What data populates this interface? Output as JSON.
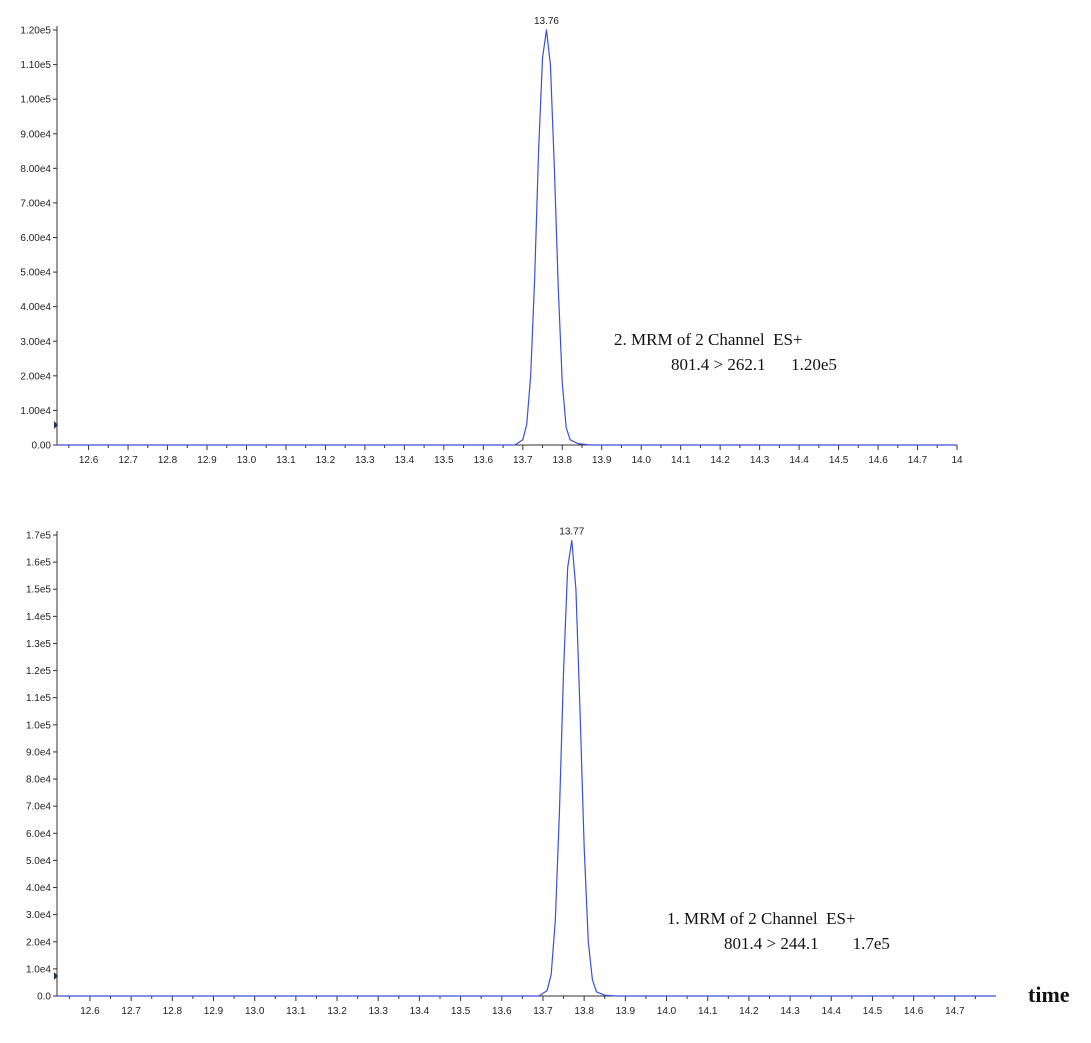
{
  "colors": {
    "trace": "#3b4fd8",
    "axis": "#333333"
  },
  "axis_word": "time",
  "chart_data": [
    {
      "type": "line",
      "title": "",
      "xlabel": "",
      "ylabel": "",
      "xlim": [
        12.52,
        14.8
      ],
      "ylim": [
        0,
        120000
      ],
      "x_ticks": [
        "12.6",
        "12.7",
        "12.8",
        "12.9",
        "13.0",
        "13.1",
        "13.2",
        "13.3",
        "13.4",
        "13.5",
        "13.6",
        "13.7",
        "13.8",
        "13.9",
        "14.0",
        "14.1",
        "14.2",
        "14.3",
        "14.4",
        "14.5",
        "14.6",
        "14.7",
        "14"
      ],
      "y_ticks": [
        "0.00",
        "1.00e4",
        "2.00e4",
        "3.00e4",
        "4.00e4",
        "5.00e4",
        "6.00e4",
        "7.00e4",
        "8.00e4",
        "9.00e4",
        "1.00e5",
        "1.10e5",
        "1.20e5"
      ],
      "peak_label": "13.76",
      "annotation_lines": [
        "2. MRM of 2 Channel  ES+",
        "801.4 > 262.1      1.20e5"
      ],
      "series": [
        {
          "x": [
            12.52,
            13.68,
            13.7,
            13.71,
            13.72,
            13.73,
            13.74,
            13.75,
            13.76,
            13.77,
            13.78,
            13.79,
            13.8,
            13.81,
            13.82,
            13.84,
            13.87,
            14.8
          ],
          "y": [
            0,
            0,
            1500,
            6000,
            20000,
            48000,
            85000,
            112000,
            120000,
            110000,
            80000,
            45000,
            18000,
            5000,
            1500,
            400,
            0,
            0
          ]
        }
      ]
    },
    {
      "type": "line",
      "title": "",
      "xlabel": "",
      "ylabel": "",
      "xlim": [
        12.52,
        14.8
      ],
      "ylim": [
        0,
        170000
      ],
      "x_ticks": [
        "12.6",
        "12.7",
        "12.8",
        "12.9",
        "13.0",
        "13.1",
        "13.2",
        "13.3",
        "13.4",
        "13.5",
        "13.6",
        "13.7",
        "13.8",
        "13.9",
        "14.0",
        "14.1",
        "14.2",
        "14.3",
        "14.4",
        "14.5",
        "14.6",
        "14.7"
      ],
      "y_ticks": [
        "0.0",
        "1.0e4",
        "2.0e4",
        "3.0e4",
        "4.0e4",
        "5.0e4",
        "6.0e4",
        "7.0e4",
        "8.0e4",
        "9.0e4",
        "1.0e5",
        "1.1e5",
        "1.2e5",
        "1.3e5",
        "1.4e5",
        "1.5e5",
        "1.6e5",
        "1.7e5"
      ],
      "peak_label": "13.77",
      "annotation_lines": [
        "1. MRM of 2 Channel  ES+",
        "801.4 > 244.1        1.7e5"
      ],
      "series": [
        {
          "x": [
            12.52,
            13.69,
            13.71,
            13.72,
            13.73,
            13.74,
            13.75,
            13.76,
            13.77,
            13.78,
            13.79,
            13.8,
            13.81,
            13.82,
            13.83,
            13.85,
            13.88,
            14.8
          ],
          "y": [
            0,
            0,
            2000,
            8000,
            28000,
            68000,
            120000,
            158000,
            168000,
            150000,
            105000,
            55000,
            20000,
            6000,
            1500,
            300,
            0,
            0
          ]
        }
      ]
    }
  ]
}
